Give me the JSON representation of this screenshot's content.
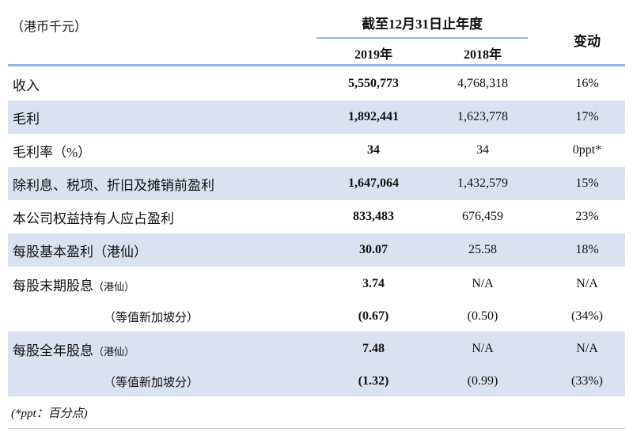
{
  "unit_label": "（港币千元）",
  "header": {
    "period_label": "截至12月31日止年度",
    "year_2019": "2019年",
    "year_2018": "2018年",
    "change_label": "变动"
  },
  "colors": {
    "row_band": "#d9e2f1",
    "header_rule": "#95b3d7",
    "bottom_rule": "#c9cfd8"
  },
  "rows": [
    {
      "kind": "single",
      "bg": "white",
      "label": "收入",
      "v2019": "5,550,773",
      "v2018": "4,768,318",
      "change": "16%"
    },
    {
      "kind": "single",
      "bg": "blue",
      "label": "毛利",
      "v2019": "1,892,441",
      "v2018": "1,623,778",
      "change": "17%"
    },
    {
      "kind": "single",
      "bg": "white",
      "label": "毛利率（%）",
      "v2019": "34",
      "v2018": "34",
      "change": "0ppt*"
    },
    {
      "kind": "single",
      "bg": "blue",
      "label": "除利息、税项、折旧及摊销前盈利",
      "v2019": "1,647,064",
      "v2018": "1,432,579",
      "change": "15%"
    },
    {
      "kind": "single",
      "bg": "white",
      "label": "本公司权益持有人应占盈利",
      "v2019": "833,483",
      "v2018": "676,459",
      "change": "23%"
    },
    {
      "kind": "single",
      "bg": "blue",
      "label": "每股基本盈利（港仙）",
      "v2019": "30.07",
      "v2018": "25.58",
      "change": "18%"
    },
    {
      "kind": "main",
      "bg": "white",
      "label": "每股末期股息",
      "suffix": "（港仙）",
      "v2019": "3.74",
      "v2018": "N/A",
      "change": "N/A"
    },
    {
      "kind": "sub",
      "bg": "white",
      "label": "（等值新加坡分）",
      "v2019": "(0.67)",
      "v2018": "(0.50)",
      "change": "(34%)"
    },
    {
      "kind": "main",
      "bg": "blue",
      "label": "每股全年股息",
      "suffix": "（港仙）",
      "v2019": "7.48",
      "v2018": "N/A",
      "change": "N/A"
    },
    {
      "kind": "sub",
      "bg": "blue",
      "label": "（等值新加坡分）",
      "v2019": "(1.32)",
      "v2018": "(0.99)",
      "change": "(33%)"
    }
  ],
  "footnote": "(*ppt：百分点)"
}
